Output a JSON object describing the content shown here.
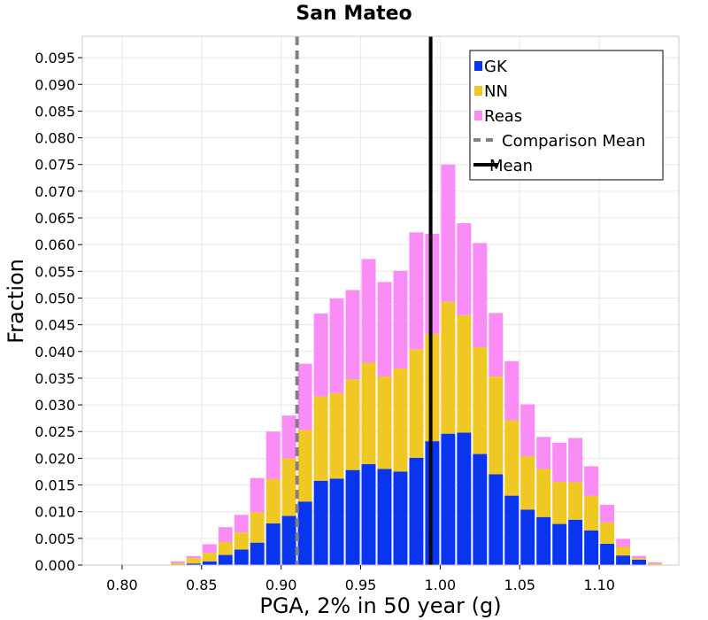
{
  "chart_data": {
    "type": "bar",
    "stacked": true,
    "title": "San Mateo",
    "xlabel": "PGA, 2% in 50 year (g)",
    "ylabel": "Fraction",
    "xlim": [
      0.775,
      1.15
    ],
    "ylim": [
      0.0,
      0.099
    ],
    "x_ticks": [
      0.8,
      0.85,
      0.9,
      0.95,
      1.0,
      1.05,
      1.1
    ],
    "x_tick_labels": [
      "0.80",
      "0.85",
      "0.90",
      "0.95",
      "1.00",
      "1.05",
      "1.10"
    ],
    "y_ticks": [
      0.0,
      0.005,
      0.01,
      0.015,
      0.02,
      0.025,
      0.03,
      0.035,
      0.04,
      0.045,
      0.05,
      0.055,
      0.06,
      0.065,
      0.07,
      0.075,
      0.08,
      0.085,
      0.09,
      0.095
    ],
    "y_tick_labels": [
      "0.000",
      "0.005",
      "0.010",
      "0.015",
      "0.020",
      "0.025",
      "0.030",
      "0.035",
      "0.040",
      "0.045",
      "0.050",
      "0.055",
      "0.060",
      "0.065",
      "0.070",
      "0.075",
      "0.080",
      "0.085",
      "0.090",
      "0.095"
    ],
    "bin_width": 0.01,
    "x": [
      0.835,
      0.845,
      0.855,
      0.865,
      0.875,
      0.885,
      0.895,
      0.905,
      0.915,
      0.925,
      0.935,
      0.945,
      0.955,
      0.965,
      0.975,
      0.985,
      0.995,
      1.005,
      1.015,
      1.025,
      1.035,
      1.045,
      1.055,
      1.065,
      1.075,
      1.085,
      1.095,
      1.105,
      1.115,
      1.125,
      1.135
    ],
    "series": [
      {
        "name": "GK",
        "color": "#0a35f0",
        "values": [
          0.0001,
          0.0003,
          0.0007,
          0.0019,
          0.0029,
          0.0042,
          0.0078,
          0.0092,
          0.0119,
          0.0158,
          0.0162,
          0.0178,
          0.0189,
          0.018,
          0.0175,
          0.0201,
          0.0232,
          0.0246,
          0.0248,
          0.0208,
          0.017,
          0.013,
          0.0104,
          0.009,
          0.0077,
          0.0085,
          0.0065,
          0.004,
          0.0018,
          0.001,
          0.0001
        ]
      },
      {
        "name": "NN",
        "color": "#f0c823",
        "values": [
          0.0003,
          0.001,
          0.0016,
          0.0024,
          0.0032,
          0.0057,
          0.0083,
          0.0108,
          0.0134,
          0.0158,
          0.016,
          0.017,
          0.019,
          0.0173,
          0.0193,
          0.0203,
          0.0201,
          0.0247,
          0.022,
          0.02,
          0.0183,
          0.0141,
          0.01,
          0.009,
          0.0079,
          0.007,
          0.0065,
          0.004,
          0.0016,
          0.0003,
          0.0002
        ]
      },
      {
        "name": "Reas",
        "color": "#fa8cf5",
        "values": [
          0.0003,
          0.0004,
          0.0016,
          0.0028,
          0.0033,
          0.0064,
          0.0089,
          0.008,
          0.0124,
          0.0155,
          0.0177,
          0.0167,
          0.0194,
          0.0177,
          0.0183,
          0.0219,
          0.0187,
          0.0257,
          0.0172,
          0.0195,
          0.0119,
          0.0111,
          0.0097,
          0.006,
          0.0073,
          0.0083,
          0.0055,
          0.0033,
          0.0015,
          0.0004,
          0.0002
        ]
      }
    ],
    "lines": [
      {
        "name": "Comparison Mean",
        "x": 0.91,
        "style": "dashed",
        "color": "#808080"
      },
      {
        "name": "Mean",
        "x": 0.994,
        "style": "solid",
        "color": "#000000"
      }
    ],
    "legend": {
      "position": "top-right",
      "entries": [
        {
          "label": "GK",
          "kind": "box",
          "color": "#0a35f0"
        },
        {
          "label": "NN",
          "kind": "box",
          "color": "#f0c823"
        },
        {
          "label": "Reas",
          "kind": "box",
          "color": "#fa8cf5"
        },
        {
          "label": "Comparison Mean",
          "kind": "dashed-line",
          "color": "#808080"
        },
        {
          "label": "Mean",
          "kind": "line",
          "color": "#000000"
        }
      ]
    },
    "grid": true
  }
}
